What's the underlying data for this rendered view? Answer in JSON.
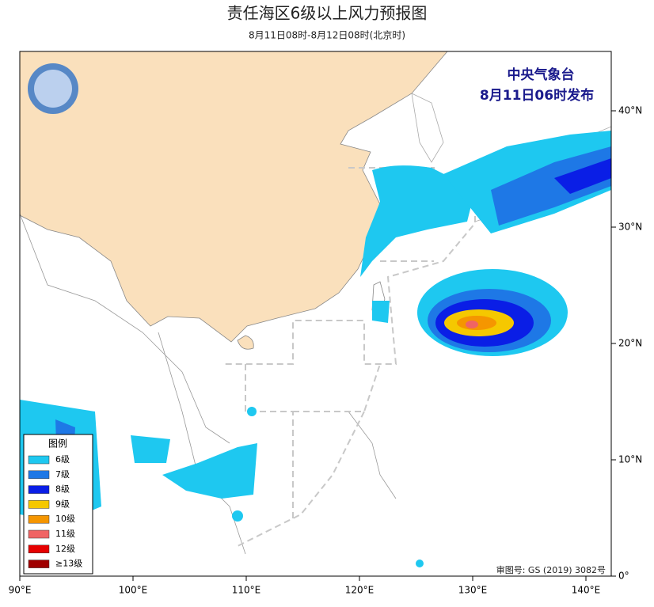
{
  "title": "责任海区6级以上风力预报图",
  "subtitle": "8月11日08时-8月12日08时(北京时)",
  "agency": "中央气象台",
  "issued": "8月11日06时发布",
  "review_no": "审图号: GS (2019) 3082号",
  "legend": {
    "title": "图例",
    "items": [
      {
        "label": "6级",
        "color": "#1ec8f0"
      },
      {
        "label": "7级",
        "color": "#1e78e6"
      },
      {
        "label": "8级",
        "color": "#0a1ee6"
      },
      {
        "label": "9级",
        "color": "#f5c800"
      },
      {
        "label": "10级",
        "color": "#f59600"
      },
      {
        "label": "11级",
        "color": "#f06464"
      },
      {
        "label": "12级",
        "color": "#e60000"
      },
      {
        "label": "≥13级",
        "color": "#a00000"
      }
    ]
  },
  "axes": {
    "x_ticks": [
      {
        "value": 90,
        "label": "90°E"
      },
      {
        "value": 100,
        "label": "100°E"
      },
      {
        "value": 110,
        "label": "110°E"
      },
      {
        "value": 120,
        "label": "120°E"
      },
      {
        "value": 130,
        "label": "130°E"
      },
      {
        "value": 140,
        "label": "140°E"
      }
    ],
    "y_ticks": [
      {
        "value": 0,
        "label": "0°"
      },
      {
        "value": 10,
        "label": "10°N"
      },
      {
        "value": 20,
        "label": "20°N"
      },
      {
        "value": 30,
        "label": "30°N"
      },
      {
        "value": 40,
        "label": "40°N"
      }
    ]
  }
}
